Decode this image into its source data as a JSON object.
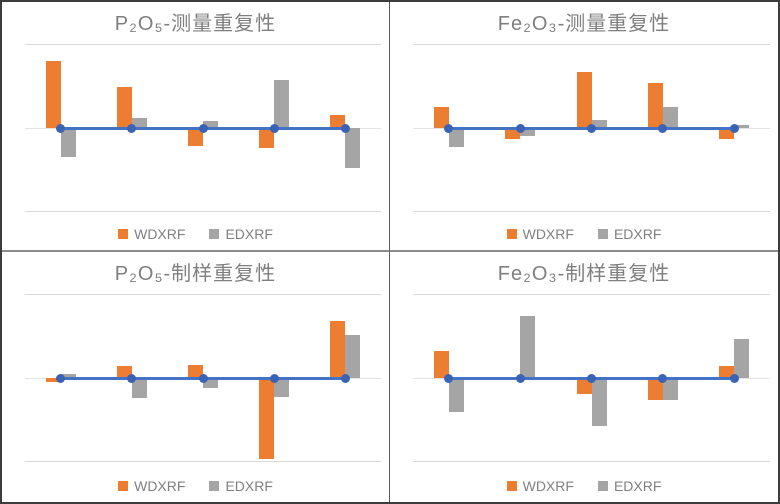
{
  "colors": {
    "wdxrf": "#ED7D31",
    "edxrf": "#A5A5A5",
    "zero_line": "#4472C4",
    "zero_marker": "#3A62B5",
    "gridline": "#D9D9D9",
    "title_text": "#7F7F7F",
    "legend_text": "#808080",
    "divider_vertical": "#595959",
    "divider_horizontal": "#8C8C8C",
    "outer_border": "#3C3C3C",
    "background": "#FFFFFF"
  },
  "chart_data": [
    {
      "type": "bar",
      "title": "P₂O₅-测量重复性",
      "series": [
        {
          "name": "WDXRF",
          "color_key": "wdxrf",
          "values": [
            0.8,
            0.49,
            -0.21,
            -0.24,
            0.15
          ]
        },
        {
          "name": "EDXRF",
          "color_key": "edxrf",
          "values": [
            -0.34,
            0.12,
            0.08,
            0.57,
            -0.48
          ]
        }
      ],
      "zero_line": {
        "value": 0,
        "markers": 5,
        "color": "#4472C4"
      },
      "ylim": [
        -1,
        1
      ],
      "gridlines": [
        -1,
        0,
        1
      ],
      "x_tick_labels": [],
      "legend_position": "bottom"
    },
    {
      "type": "bar",
      "title": "Fe₂O₃-测量重复性",
      "series": [
        {
          "name": "WDXRF",
          "color_key": "wdxrf",
          "values": [
            0.25,
            -0.13,
            0.67,
            0.54,
            -0.13
          ]
        },
        {
          "name": "EDXRF",
          "color_key": "edxrf",
          "values": [
            -0.23,
            -0.1,
            0.09,
            0.25,
            0.04
          ]
        }
      ],
      "zero_line": {
        "value": 0,
        "markers": 5,
        "color": "#4472C4"
      },
      "ylim": [
        -1,
        1
      ],
      "gridlines": [
        -1,
        0,
        1
      ],
      "x_tick_labels": [],
      "legend_position": "bottom"
    },
    {
      "type": "bar",
      "title": "P₂O₅-制样重复性",
      "series": [
        {
          "name": "WDXRF",
          "color_key": "wdxrf",
          "values": [
            -0.05,
            0.14,
            0.16,
            -0.96,
            0.68
          ]
        },
        {
          "name": "EDXRF",
          "color_key": "edxrf",
          "values": [
            0.05,
            -0.24,
            -0.12,
            -0.23,
            0.51
          ]
        }
      ],
      "zero_line": {
        "value": 0,
        "markers": 5,
        "color": "#4472C4"
      },
      "ylim": [
        -1,
        1
      ],
      "gridlines": [
        -1,
        0,
        1
      ],
      "x_tick_labels": [],
      "legend_position": "bottom"
    },
    {
      "type": "bar",
      "title": "Fe₂O₃-制样重复性",
      "series": [
        {
          "name": "WDXRF",
          "color_key": "wdxrf",
          "values": [
            0.32,
            -0.02,
            -0.19,
            -0.26,
            0.14
          ]
        },
        {
          "name": "EDXRF",
          "color_key": "edxrf",
          "values": [
            -0.4,
            0.74,
            -0.57,
            -0.26,
            0.46
          ]
        }
      ],
      "zero_line": {
        "value": 0,
        "markers": 5,
        "color": "#4472C4"
      },
      "ylim": [
        -1,
        1
      ],
      "gridlines": [
        -1,
        0,
        1
      ],
      "x_tick_labels": [],
      "legend_position": "bottom"
    }
  ]
}
